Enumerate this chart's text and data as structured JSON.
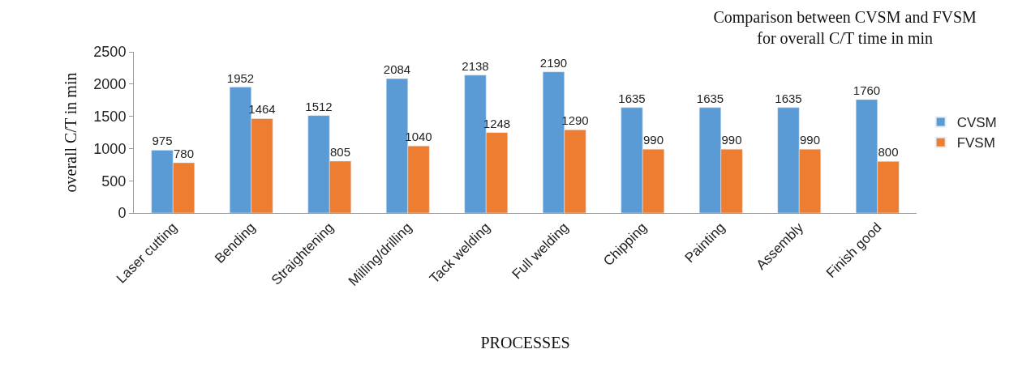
{
  "chart_data": {
    "type": "bar",
    "title": "Comparison between CVSM and FVSM\nfor overall C/T time in min",
    "xlabel": "PROCESSES",
    "ylabel": "overall C/T in min",
    "categories": [
      "Laser cutting",
      "Bending",
      "Straightening",
      "Milling/drilling",
      "Tack welding",
      "Full welding",
      "Chipping",
      "Painting",
      "Assembly",
      "Finish good"
    ],
    "series": [
      {
        "name": "CVSM",
        "color": "#5b9bd5",
        "values": [
          975,
          1952,
          1512,
          2084,
          2138,
          2190,
          1635,
          1635,
          1635,
          1760
        ]
      },
      {
        "name": "FVSM",
        "color": "#ed7d31",
        "values": [
          780,
          1464,
          805,
          1040,
          1248,
          1290,
          990,
          990,
          990,
          800
        ]
      }
    ],
    "ylim": [
      0,
      2500
    ],
    "yticks": [
      0,
      500,
      1000,
      1500,
      2000,
      2500
    ],
    "data_labels": true,
    "grid": false,
    "legend": "right"
  }
}
